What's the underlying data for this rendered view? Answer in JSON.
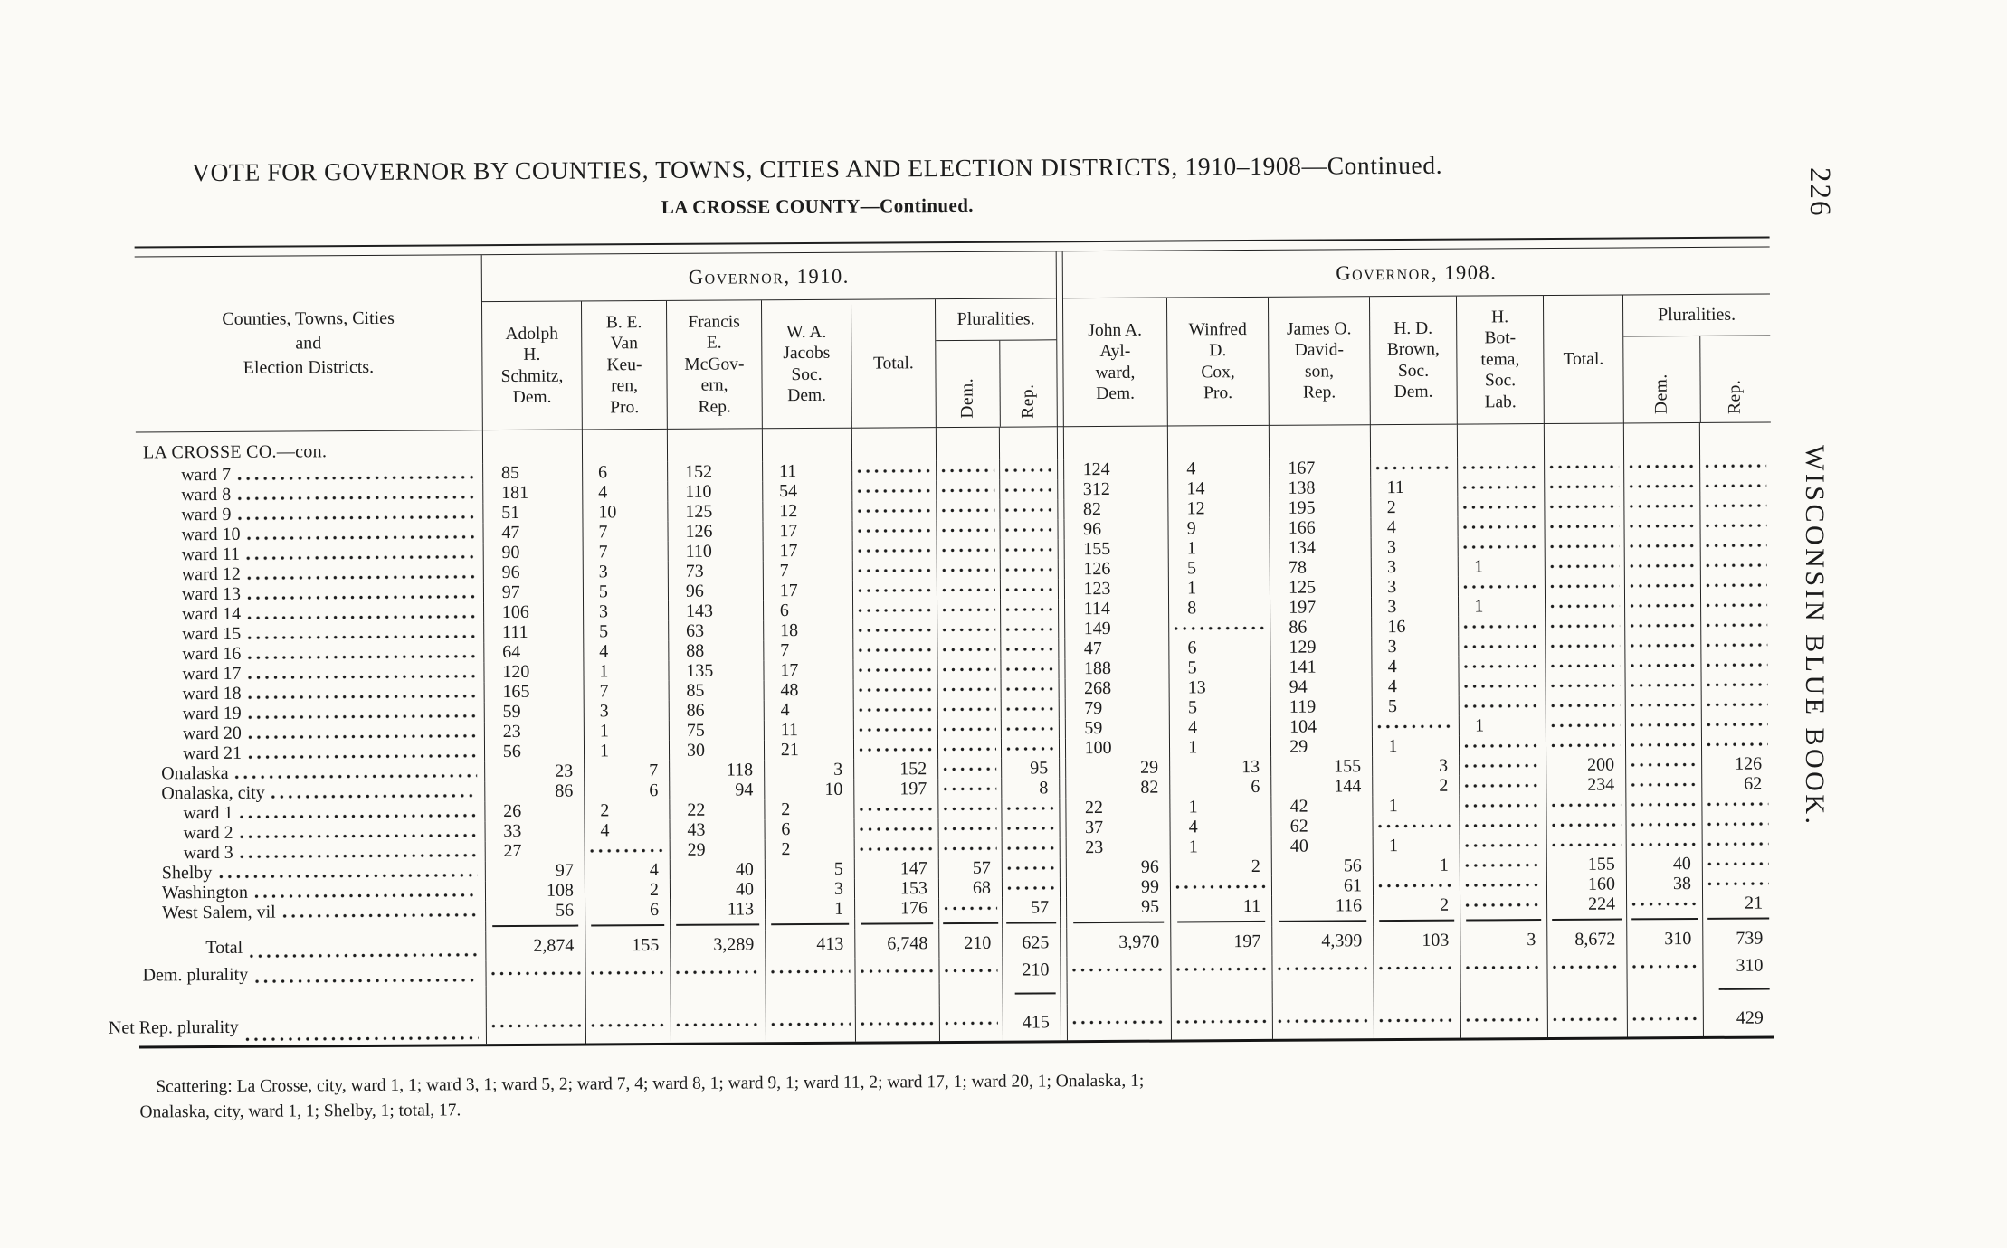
{
  "page": {
    "title": "VOTE FOR GOVERNOR BY COUNTIES, TOWNS, CITIES AND ELECTION DISTRICTS, 1910–1908—Continued.",
    "subtitle": "LA CROSSE COUNTY—Continued.",
    "page_number": "226",
    "side_text": "WISCONSIN BLUE BOOK.",
    "footnote_line1": "Scattering:  La Crosse, city, ward 1, 1; ward 3, 1; ward 5, 2; ward 7, 4; ward 8, 1; ward 9, 1; ward 11, 2; ward 17, 1; ward 20, 1; Onalaska, 1;",
    "footnote_line2": "Onalaska, city, ward 1, 1; Shelby, 1; total, 17."
  },
  "table": {
    "stub_header": "Counties, Towns, Cities\nand\nElection Districts.",
    "sections": [
      {
        "title": "Governor, 1910.",
        "candidates": [
          "Adolph\nH.\nSchmitz,\nDem.",
          "B. E.\nVan\nKeu-\nren,\nPro.",
          "Francis\nE.\nMcGov-\nern,\nRep.",
          "W. A.\nJacobs\nSoc.\nDem."
        ],
        "total_label": "Total.",
        "pluralities_label": "Pluralities.",
        "plur_dem": "Dem.",
        "plur_rep": "Rep."
      },
      {
        "title": "Governor, 1908.",
        "candidates": [
          "John A.\nAyl-\nward,\nDem.",
          "Winfred\nD.\nCox,\nPro.",
          "James O.\nDavid-\nson,\nRep.",
          "H. D.\nBrown,\nSoc.\nDem.",
          "H.\nBot-\ntema,\nSoc.\nLab."
        ],
        "total_label": "Total.",
        "pluralities_label": "Pluralities.",
        "plur_dem": "Dem.",
        "plur_rep": "Rep."
      }
    ],
    "rows": [
      {
        "type": "county",
        "label": "LA CROSSE CO.—con.",
        "lead": false,
        "va": "l",
        "v": [
          "",
          "",
          "",
          "",
          "",
          "",
          "",
          "",
          "",
          "",
          "",
          "",
          "",
          "",
          ""
        ]
      },
      {
        "type": "ward",
        "label": "ward 7",
        "lead": true,
        "va": "l",
        "v": [
          "85",
          "6",
          "152",
          "11",
          null,
          null,
          null,
          "124",
          "4",
          "167",
          null,
          null,
          null,
          null,
          null
        ]
      },
      {
        "type": "ward",
        "label": "ward 8",
        "lead": true,
        "va": "l",
        "v": [
          "181",
          "4",
          "110",
          "54",
          null,
          null,
          null,
          "312",
          "14",
          "138",
          "11",
          null,
          null,
          null,
          null
        ]
      },
      {
        "type": "ward",
        "label": "ward 9",
        "lead": true,
        "va": "l",
        "v": [
          "51",
          "10",
          "125",
          "12",
          null,
          null,
          null,
          "82",
          "12",
          "195",
          "2",
          null,
          null,
          null,
          null
        ]
      },
      {
        "type": "ward",
        "label": "ward 10",
        "lead": true,
        "va": "l",
        "v": [
          "47",
          "7",
          "126",
          "17",
          null,
          null,
          null,
          "96",
          "9",
          "166",
          "4",
          null,
          null,
          null,
          null
        ]
      },
      {
        "type": "ward",
        "label": "ward 11",
        "lead": true,
        "va": "l",
        "v": [
          "90",
          "7",
          "110",
          "17",
          null,
          null,
          null,
          "155",
          "1",
          "134",
          "3",
          null,
          null,
          null,
          null
        ]
      },
      {
        "type": "ward",
        "label": "ward 12",
        "lead": true,
        "va": "l",
        "v": [
          "96",
          "3",
          "73",
          "7",
          null,
          null,
          null,
          "126",
          "5",
          "78",
          "3",
          "1",
          null,
          null,
          null
        ]
      },
      {
        "type": "ward",
        "label": "ward 13",
        "lead": true,
        "va": "l",
        "v": [
          "97",
          "5",
          "96",
          "17",
          null,
          null,
          null,
          "123",
          "1",
          "125",
          "3",
          null,
          null,
          null,
          null
        ]
      },
      {
        "type": "ward",
        "label": "ward 14",
        "lead": true,
        "va": "l",
        "v": [
          "106",
          "3",
          "143",
          "6",
          null,
          null,
          null,
          "114",
          "8",
          "197",
          "3",
          "1",
          null,
          null,
          null
        ]
      },
      {
        "type": "ward",
        "label": "ward 15",
        "lead": true,
        "va": "l",
        "v": [
          "111",
          "5",
          "63",
          "18",
          null,
          null,
          null,
          "149",
          null,
          "86",
          "16",
          null,
          null,
          null,
          null
        ]
      },
      {
        "type": "ward",
        "label": "ward 16",
        "lead": true,
        "va": "l",
        "v": [
          "64",
          "4",
          "88",
          "7",
          null,
          null,
          null,
          "47",
          "6",
          "129",
          "3",
          null,
          null,
          null,
          null
        ]
      },
      {
        "type": "ward",
        "label": "ward 17",
        "lead": true,
        "va": "l",
        "v": [
          "120",
          "1",
          "135",
          "17",
          null,
          null,
          null,
          "188",
          "5",
          "141",
          "4",
          null,
          null,
          null,
          null
        ]
      },
      {
        "type": "ward",
        "label": "ward 18",
        "lead": true,
        "va": "l",
        "v": [
          "165",
          "7",
          "85",
          "48",
          null,
          null,
          null,
          "268",
          "13",
          "94",
          "4",
          null,
          null,
          null,
          null
        ]
      },
      {
        "type": "ward",
        "label": "ward 19",
        "lead": true,
        "va": "l",
        "v": [
          "59",
          "3",
          "86",
          "4",
          null,
          null,
          null,
          "79",
          "5",
          "119",
          "5",
          null,
          null,
          null,
          null
        ]
      },
      {
        "type": "ward",
        "label": "ward 20",
        "lead": true,
        "va": "l",
        "v": [
          "23",
          "1",
          "75",
          "11",
          null,
          null,
          null,
          "59",
          "4",
          "104",
          null,
          "1",
          null,
          null,
          null
        ]
      },
      {
        "type": "ward",
        "label": "ward 21",
        "lead": true,
        "va": "l",
        "v": [
          "56",
          "1",
          "30",
          "21",
          null,
          null,
          null,
          "100",
          "1",
          "29",
          "1",
          null,
          null,
          null,
          null
        ]
      },
      {
        "type": "town",
        "label": "Onalaska",
        "lead": true,
        "va": "r",
        "v": [
          "23",
          "7",
          "118",
          "3",
          "152",
          null,
          "95",
          "29",
          "13",
          "155",
          "3",
          null,
          "200",
          null,
          "126"
        ]
      },
      {
        "type": "town",
        "label": "Onalaska, city",
        "lead": true,
        "va": "r",
        "v": [
          "86",
          "6",
          "94",
          "10",
          "197",
          null,
          "8",
          "82",
          "6",
          "144",
          "2",
          null,
          "234",
          null,
          "62"
        ]
      },
      {
        "type": "ward",
        "label": "ward 1",
        "lead": true,
        "va": "l",
        "v": [
          "26",
          "2",
          "22",
          "2",
          null,
          null,
          null,
          "22",
          "1",
          "42",
          "1",
          null,
          null,
          null,
          null
        ]
      },
      {
        "type": "ward",
        "label": "ward 2",
        "lead": true,
        "va": "l",
        "v": [
          "33",
          "4",
          "43",
          "6",
          null,
          null,
          null,
          "37",
          "4",
          "62",
          null,
          null,
          null,
          null,
          null
        ]
      },
      {
        "type": "ward",
        "label": "ward 3",
        "lead": true,
        "va": "l",
        "v": [
          "27",
          null,
          "29",
          "2",
          null,
          null,
          null,
          "23",
          "1",
          "40",
          "1",
          null,
          null,
          null,
          null
        ]
      },
      {
        "type": "town",
        "label": "Shelby",
        "lead": true,
        "va": "r",
        "v": [
          "97",
          "4",
          "40",
          "5",
          "147",
          "57",
          null,
          "96",
          "2",
          "56",
          "1",
          null,
          "155",
          "40",
          null
        ]
      },
      {
        "type": "town",
        "label": "Washington",
        "lead": true,
        "va": "r",
        "v": [
          "108",
          "2",
          "40",
          "3",
          "153",
          "68",
          null,
          "99",
          null,
          "61",
          null,
          null,
          "160",
          "38",
          null
        ]
      },
      {
        "type": "town",
        "label": "West Salem, vil",
        "lead": true,
        "va": "r",
        "v": [
          "56",
          "6",
          "113",
          "1",
          "176",
          null,
          "57",
          "95",
          "11",
          "116",
          "2",
          null,
          "224",
          null,
          "21"
        ]
      },
      {
        "type": "total",
        "label": "Total",
        "lead": true,
        "va": "r",
        "v": [
          "2,874",
          "155",
          "3,289",
          "413",
          "6,748",
          "210",
          "625",
          "3,970",
          "197",
          "4,399",
          "103",
          "3",
          "8,672",
          "310",
          "739"
        ]
      },
      {
        "type": "demplur",
        "label": "Dem. plurality",
        "lead": true,
        "va": "r",
        "v": [
          null,
          null,
          null,
          null,
          null,
          null,
          "210",
          null,
          null,
          null,
          null,
          null,
          null,
          null,
          "310"
        ]
      },
      {
        "type": "netrep",
        "label": "Net Rep. plurality",
        "lead": true,
        "va": "r",
        "v": [
          null,
          null,
          null,
          null,
          null,
          null,
          "415",
          null,
          null,
          null,
          null,
          null,
          null,
          null,
          "429"
        ]
      }
    ]
  }
}
